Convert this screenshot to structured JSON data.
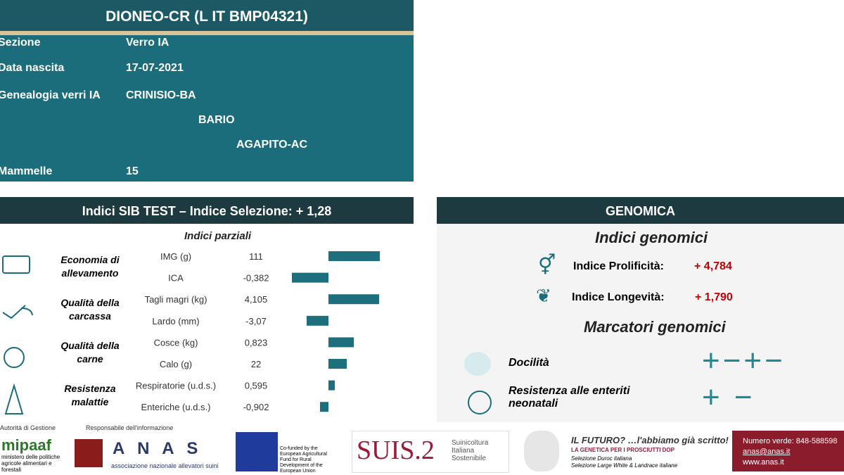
{
  "header": {
    "title": "DIONEO-CR (L IT BMP04321)",
    "rows": [
      {
        "label": "Sezione",
        "value": "Verro IA"
      },
      {
        "label": "Data nascita",
        "value": "17-07-2021"
      },
      {
        "label": "Genealogia verri IA",
        "value": "CRINISIO-BA"
      },
      {
        "label": "Mammelle",
        "value": "15"
      }
    ],
    "pedigree": [
      "BARIO",
      "AGAPITO-AC"
    ]
  },
  "sib": {
    "title": "Indici SIB TEST – Indice Selezione: + 1,28",
    "subtitle": "Indici parziali",
    "groups": [
      {
        "name": "Economia di allevamento",
        "items": [
          {
            "trait": "IMG (g)",
            "value": 111,
            "score": 1.46
          },
          {
            "trait": "ICA",
            "value": {
              "value": -0.382,
              "label": "-0,382"
            },
            "score": -1.04
          }
        ]
      },
      {
        "name": "Qualità della carcassa",
        "items": [
          {
            "trait": "Tagli magri (kg)",
            "value": {
              "value": 4.105,
              "label": "4,105"
            },
            "score": 1.44
          },
          {
            "trait": "Lardo (mm)",
            "value": {
              "value": -3.07,
              "label": "-3,07"
            },
            "score": -0.62
          }
        ]
      },
      {
        "name": "Qualità della carne",
        "items": [
          {
            "trait": "Cosce (kg)",
            "value": {
              "value": 0.823,
              "label": "0,823"
            },
            "score": 0.72
          },
          {
            "trait": "Calo (g)",
            "value": 22,
            "score": 0.52
          }
        ]
      },
      {
        "name": "Resistenza malattie",
        "items": [
          {
            "trait": "Respiratorie (u.d.s.)",
            "value": {
              "value": 0.595,
              "label": "0,595"
            },
            "score": 0.18
          },
          {
            "trait": "Enteriche (u.d.s.)",
            "value": {
              "value": -0.902,
              "label": "-0,902"
            },
            "score": -0.24
          }
        ]
      }
    ]
  },
  "genomica": {
    "title": "GENOMICA",
    "indici_title": "Indici genomici",
    "indici": [
      {
        "label": "Indice Prolificità:",
        "value": "+ 4,784"
      },
      {
        "label": "Indice Longevità:",
        "value": "+ 1,790"
      }
    ],
    "marcatori_title": "Marcatori genomici",
    "marcatori": [
      {
        "label": "Docilità",
        "symbols": "+−+−"
      },
      {
        "label": "Resistenza alle enteriti neonatali",
        "symbols": "+ −"
      }
    ]
  },
  "footer": {
    "autorita": "Autorità di Gestione",
    "responsabile": "Responsabile dell'informazione",
    "mipaaf": "mipaaf",
    "mipaaf_sub": "ministero delle politiche agricole alimentari e forestali",
    "anas": "A N A S",
    "anas_sub": "associazione nazionale allevatori suini",
    "eu": "Co-funded by the European Agricultural Fund for Rural Development of the European Union",
    "suis": "SUIS.2",
    "suis_sub": "Suinicoltura Italiana Sostenibile",
    "futuro": "IL FUTURO? …l'abbiamo già scritto!",
    "dop": "LA GENETICA PER I PROSCIUTTI DOP",
    "duroc": "Selezione Duroc italiana",
    "lw": "Selezione Large White & Landrace italiane",
    "numero": "Numero verde: 848-588598",
    "email": "anas@anas.it",
    "web": "www.anas.it"
  }
}
